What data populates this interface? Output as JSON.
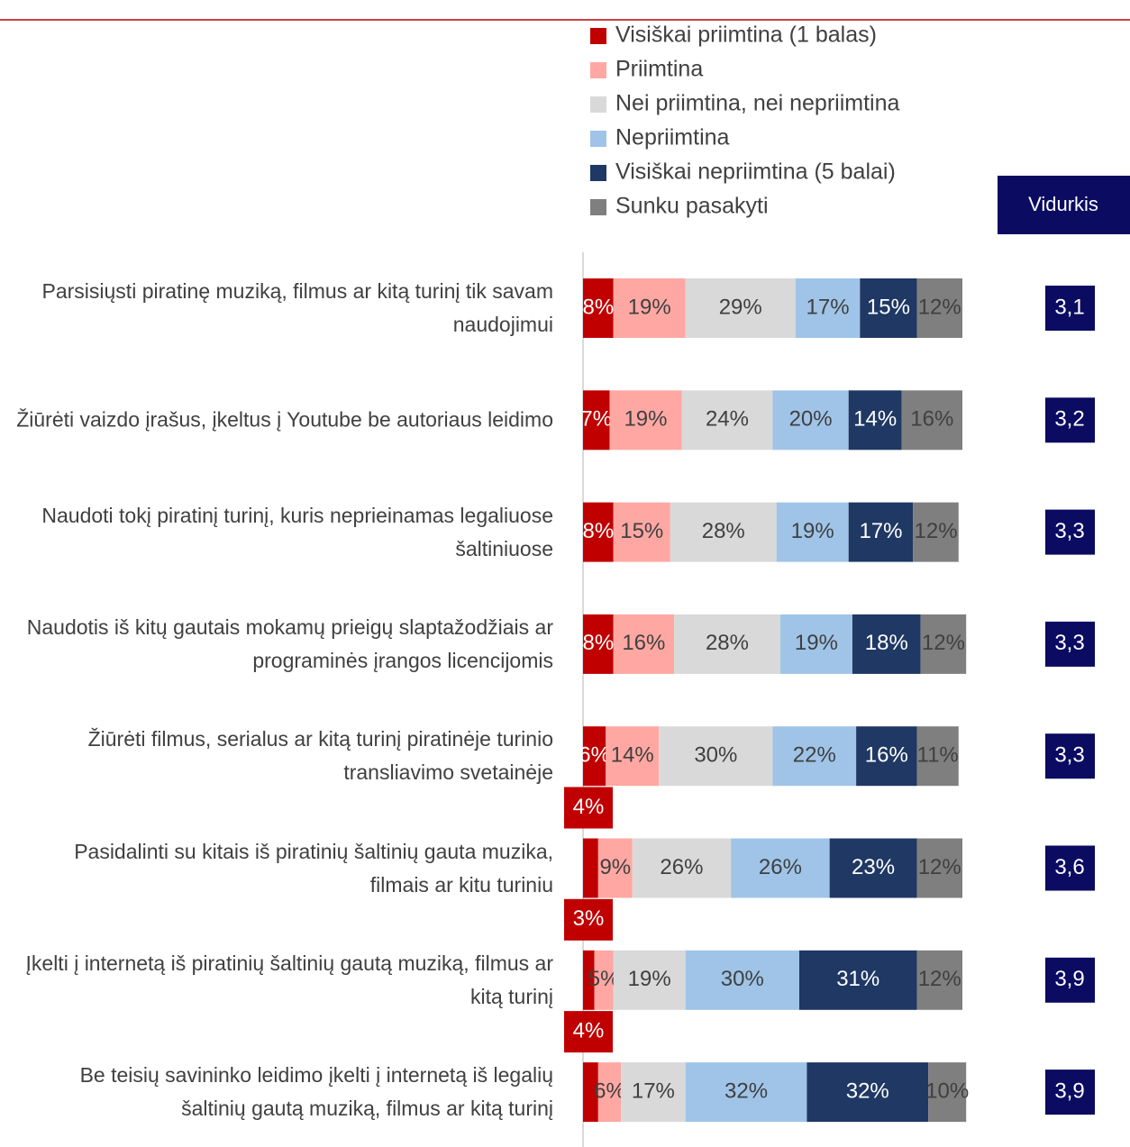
{
  "chart_data": {
    "type": "stacked-bar-horizontal",
    "categories": [
      "Parsisiųsti piratinę muziką, filmus ar kitą turinį tik savam naudojimui",
      "Žiūrėti vaizdo įrašus, įkeltus į Youtube be autoriaus leidimo",
      "Naudoti tokį piratinį turinį, kuris neprieinamas legaliuose šaltiniuose",
      "Naudotis iš kitų gautais mokamų prieigų slaptažodžiais ar programinės įrangos licencijomis",
      "Žiūrėti filmus, serialus ar kitą turinį piratinėje turinio transliavimo svetainėje",
      "Pasidalinti su kitais iš piratinių šaltinių gauta muzika, filmais ar kitu turiniu",
      "Įkelti į internetą iš piratinių šaltinių gautą muziką, filmus ar kitą turinį",
      "Be teisių savininko leidimo įkelti į internetą iš legalių šaltinių gautą muziką, filmus ar kitą turinį"
    ],
    "series": [
      {
        "name": "Visiškai priimtina (1 balas)",
        "color": "#c00000",
        "values": [
          8,
          7,
          8,
          8,
          6,
          4,
          3,
          4
        ],
        "value_labels": [
          "8%",
          "7%",
          "8%",
          "8%",
          "6%",
          "4%",
          "3%",
          "4%"
        ]
      },
      {
        "name": "Priimtina",
        "color": "#ffa8a3",
        "values": [
          19,
          19,
          15,
          16,
          14,
          9,
          5,
          6
        ],
        "value_labels": [
          "19%",
          "19%",
          "15%",
          "16%",
          "14%",
          "9%",
          "5%",
          "6%"
        ]
      },
      {
        "name": "Nei priimtina, nei nepriimtina",
        "color": "#d9d9d9",
        "values": [
          29,
          24,
          28,
          28,
          30,
          26,
          19,
          17
        ],
        "value_labels": [
          "29%",
          "24%",
          "28%",
          "28%",
          "30%",
          "26%",
          "19%",
          "17%"
        ]
      },
      {
        "name": "Nepriimtina",
        "color": "#9fc4e8",
        "values": [
          17,
          20,
          19,
          19,
          22,
          26,
          30,
          32
        ],
        "value_labels": [
          "17%",
          "20%",
          "19%",
          "19%",
          "22%",
          "26%",
          "30%",
          "32%"
        ]
      },
      {
        "name": "Visiškai nepriimtina (5 balai)",
        "color": "#1f3864",
        "values": [
          15,
          14,
          17,
          18,
          16,
          23,
          31,
          32
        ],
        "value_labels": [
          "15%",
          "14%",
          "17%",
          "18%",
          "16%",
          "23%",
          "31%",
          "32%"
        ]
      },
      {
        "name": "Sunku pasakyti",
        "color": "#7f7f7f",
        "values": [
          12,
          16,
          12,
          12,
          11,
          12,
          12,
          10
        ],
        "value_labels": [
          "12%",
          "16%",
          "12%",
          "12%",
          "11%",
          "12%",
          "12%",
          "10%"
        ]
      }
    ],
    "xlim": [
      0,
      100
    ],
    "mean_title": "Vidurkis",
    "mean_color": "#0b0b62",
    "means": [
      3.1,
      3.2,
      3.3,
      3.3,
      3.3,
      3.6,
      3.9,
      3.9
    ],
    "mean_labels": [
      "3,1",
      "3,2",
      "3,3",
      "3,3",
      "3,3",
      "3,6",
      "3,9",
      "3,9"
    ]
  }
}
